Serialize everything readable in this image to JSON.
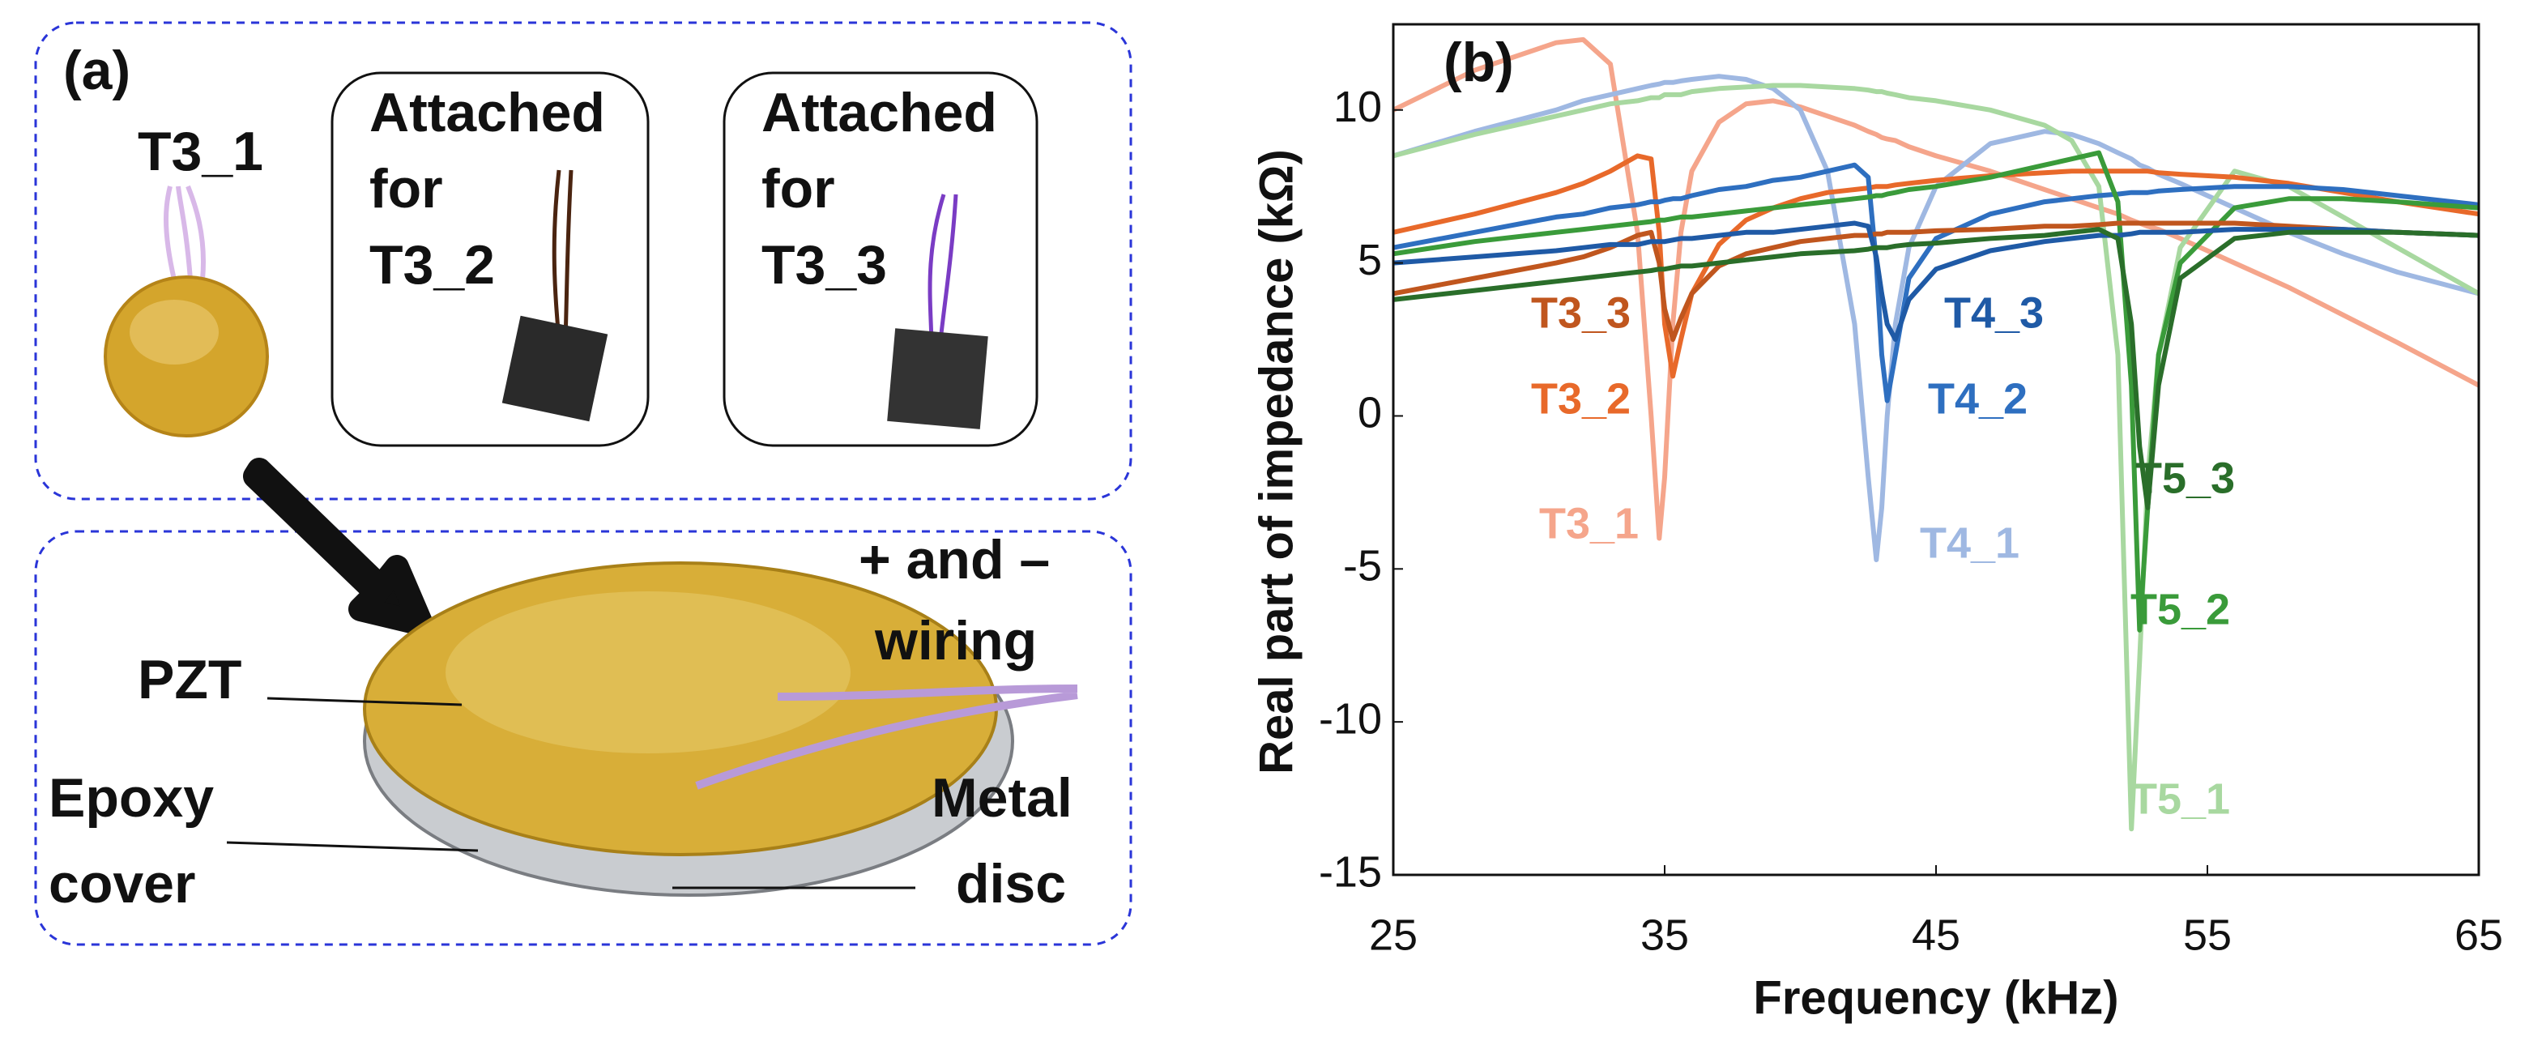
{
  "photo_panel": {
    "label": "(a)",
    "sensor": "T3_1",
    "boxes": [
      {
        "lines": [
          "Attached",
          "for",
          "T3_2"
        ]
      },
      {
        "lines": [
          "Attached",
          "for",
          "T3_3"
        ]
      }
    ],
    "wiring": [
      "+ and –",
      "wiring"
    ],
    "pzt": "PZT",
    "epoxy": [
      "Epoxy",
      "cover"
    ],
    "metal": [
      "Metal",
      "disc"
    ]
  },
  "chart_data": {
    "type": "line",
    "panel_label": "(b)",
    "x_label": "Frequency  (kHz)",
    "y_label": "Real part of impedance (kΩ)",
    "xlim": [
      25,
      65
    ],
    "xticks": [
      25,
      35,
      45,
      55,
      65
    ],
    "ylim": [
      -15,
      12.8
    ],
    "yticks": [
      -15,
      -10,
      -5,
      0,
      5,
      10
    ],
    "grid": false,
    "x": [
      25,
      28,
      31,
      32,
      33,
      34,
      34.5,
      34.8,
      35,
      35.3,
      35.6,
      36,
      37,
      38,
      39,
      40,
      41,
      42,
      42.5,
      42.8,
      43,
      43.2,
      43.5,
      44,
      45,
      47,
      49,
      50,
      51,
      51.7,
      52.2,
      52.5,
      52.8,
      53.2,
      54,
      56,
      58,
      60,
      62,
      65
    ],
    "series": [
      {
        "name": "T3_1",
        "color": "#f5a58b",
        "values": [
          10,
          11.3,
          12.2,
          12.3,
          11.5,
          6,
          0,
          -4,
          -2,
          3,
          6,
          8,
          9.6,
          10.2,
          10.3,
          10.1,
          9.8,
          9.5,
          9.3,
          9.2,
          9.1,
          9.05,
          9,
          8.8,
          8.5,
          8,
          7.4,
          7.1,
          6.8,
          6.6,
          6.4,
          6.3,
          6.2,
          6.1,
          5.8,
          5,
          4.2,
          3.3,
          2.4,
          1
        ]
      },
      {
        "name": "T3_2",
        "color": "#e8692a",
        "values": [
          6,
          6.6,
          7.3,
          7.6,
          8,
          8.5,
          8.4,
          6,
          3,
          1.3,
          2.5,
          4,
          5.6,
          6.4,
          6.8,
          7.1,
          7.3,
          7.4,
          7.45,
          7.5,
          7.5,
          7.5,
          7.55,
          7.6,
          7.7,
          7.85,
          7.95,
          8,
          8,
          8,
          8,
          8,
          8,
          7.95,
          7.9,
          7.8,
          7.6,
          7.3,
          7,
          6.6
        ]
      },
      {
        "name": "T3_3",
        "color": "#c0561e",
        "values": [
          4,
          4.5,
          5,
          5.2,
          5.5,
          5.9,
          6,
          5,
          3.5,
          2.5,
          3.2,
          4,
          4.9,
          5.3,
          5.5,
          5.7,
          5.8,
          5.9,
          5.9,
          5.95,
          5.95,
          6,
          6,
          6,
          6.05,
          6.1,
          6.2,
          6.2,
          6.25,
          6.3,
          6.3,
          6.3,
          6.3,
          6.3,
          6.3,
          6.3,
          6.2,
          6.1,
          6,
          5.9
        ]
      },
      {
        "name": "T4_1",
        "color": "#9fb8e2",
        "values": [
          8.5,
          9.3,
          10,
          10.3,
          10.5,
          10.7,
          10.8,
          10.85,
          10.9,
          10.9,
          10.95,
          11,
          11.1,
          11,
          10.7,
          10,
          8,
          3,
          -2,
          -4.7,
          -3,
          0,
          3,
          5.5,
          7.5,
          8.9,
          9.3,
          9.2,
          8.9,
          8.6,
          8.4,
          8.2,
          8.1,
          7.9,
          7.6,
          6.8,
          6,
          5.3,
          4.7,
          4
        ]
      },
      {
        "name": "T4_2",
        "color": "#2e6fc0",
        "values": [
          5.5,
          6,
          6.5,
          6.6,
          6.8,
          6.9,
          7,
          7,
          7.05,
          7.1,
          7.1,
          7.2,
          7.4,
          7.5,
          7.7,
          7.8,
          8,
          8.2,
          7.8,
          5,
          2,
          0.5,
          2,
          4.5,
          5.8,
          6.6,
          7,
          7.1,
          7.2,
          7.25,
          7.3,
          7.3,
          7.3,
          7.35,
          7.4,
          7.5,
          7.5,
          7.4,
          7.2,
          6.9
        ]
      },
      {
        "name": "T4_3",
        "color": "#1f5aa6",
        "values": [
          5,
          5.2,
          5.4,
          5.5,
          5.6,
          5.6,
          5.7,
          5.7,
          5.7,
          5.75,
          5.8,
          5.8,
          5.9,
          6,
          6,
          6.1,
          6.2,
          6.3,
          6.2,
          5.2,
          4,
          3,
          2.5,
          3.8,
          4.8,
          5.4,
          5.7,
          5.8,
          5.9,
          5.9,
          5.95,
          6,
          6,
          6,
          6,
          6.1,
          6.1,
          6.1,
          6,
          5.9
        ]
      },
      {
        "name": "T5_1",
        "color": "#a8d8a0",
        "values": [
          8.5,
          9.2,
          9.8,
          10,
          10.2,
          10.3,
          10.4,
          10.4,
          10.5,
          10.5,
          10.5,
          10.6,
          10.7,
          10.75,
          10.8,
          10.8,
          10.75,
          10.7,
          10.65,
          10.6,
          10.6,
          10.55,
          10.5,
          10.4,
          10.3,
          10,
          9.5,
          9,
          7.5,
          2,
          -13.5,
          -8,
          -2,
          2,
          5.5,
          8,
          7.5,
          6.5,
          5.5,
          4
        ]
      },
      {
        "name": "T5_2",
        "color": "#3a9b3a",
        "values": [
          5.3,
          5.7,
          6,
          6.1,
          6.2,
          6.3,
          6.35,
          6.4,
          6.4,
          6.45,
          6.5,
          6.5,
          6.6,
          6.7,
          6.8,
          6.9,
          7,
          7.1,
          7.15,
          7.2,
          7.2,
          7.25,
          7.3,
          7.4,
          7.5,
          7.8,
          8.2,
          8.4,
          8.6,
          7,
          1,
          -7,
          -3,
          2,
          5,
          6.8,
          7.1,
          7.1,
          7,
          6.8
        ]
      },
      {
        "name": "T5_3",
        "color": "#2a6e2a",
        "values": [
          3.8,
          4.1,
          4.4,
          4.5,
          4.6,
          4.7,
          4.75,
          4.8,
          4.8,
          4.85,
          4.9,
          4.9,
          5,
          5.1,
          5.2,
          5.3,
          5.35,
          5.4,
          5.45,
          5.5,
          5.5,
          5.5,
          5.55,
          5.6,
          5.65,
          5.8,
          5.9,
          6,
          6.1,
          5.8,
          3,
          -1,
          -3,
          1,
          4.5,
          5.8,
          6,
          6,
          6,
          5.9
        ]
      }
    ]
  }
}
